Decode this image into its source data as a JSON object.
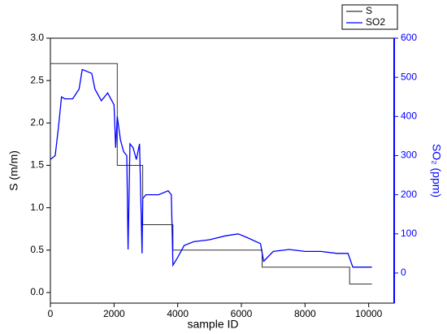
{
  "chart_data": {
    "type": "line",
    "xlabel": "sample ID",
    "ylabel": "S (m/m)",
    "y2label": "SO₂ (ppm)",
    "xlim": [
      0,
      10800
    ],
    "xticks": [
      0,
      2000,
      4000,
      6000,
      8000,
      10000
    ],
    "ylim": [
      -0.125,
      3.0
    ],
    "yticks": [
      {
        "value": 0,
        "label": "0.0"
      },
      0.5,
      {
        "value": 1,
        "label": "1.0"
      },
      1.5,
      {
        "value": 2,
        "label": "2.0"
      },
      2.5,
      {
        "value": 3,
        "label": "3.0"
      }
    ],
    "y2lim": [
      -77,
      600
    ],
    "y2ticks": [
      0,
      100,
      200,
      300,
      400,
      500,
      600
    ],
    "y2color": "#0000ff",
    "legend": "top-right",
    "series": [
      {
        "name": "S",
        "color": "#333333",
        "x": [
          0,
          2100,
          2100,
          2900,
          2900,
          3850,
          3850,
          6650,
          6650,
          9400,
          9400,
          10100
        ],
        "values": [
          2.7,
          2.7,
          1.5,
          1.5,
          0.8,
          0.8,
          0.5,
          0.5,
          0.3,
          0.3,
          0.1,
          0.1
        ]
      },
      {
        "name": "SO2",
        "color": "#0000ff",
        "axis": "y2",
        "x": [
          0,
          150,
          250,
          350,
          450,
          700,
          900,
          1000,
          1300,
          1400,
          1600,
          1800,
          2000,
          2050,
          2100,
          2200,
          2300,
          2400,
          2440,
          2500,
          2600,
          2700,
          2800,
          2880,
          2900,
          3000,
          3400,
          3700,
          3800,
          3850,
          4000,
          4200,
          4500,
          5000,
          5500,
          5900,
          6200,
          6600,
          6700,
          7000,
          7500,
          8000,
          8500,
          9000,
          9350,
          9500,
          10100
        ],
        "values": [
          290,
          300,
          370,
          450,
          445,
          445,
          470,
          520,
          510,
          470,
          440,
          460,
          430,
          320,
          400,
          340,
          310,
          300,
          60,
          330,
          320,
          290,
          330,
          50,
          190,
          200,
          200,
          210,
          200,
          20,
          40,
          70,
          80,
          85,
          95,
          100,
          90,
          75,
          30,
          55,
          60,
          55,
          55,
          50,
          50,
          15,
          15
        ]
      }
    ]
  }
}
